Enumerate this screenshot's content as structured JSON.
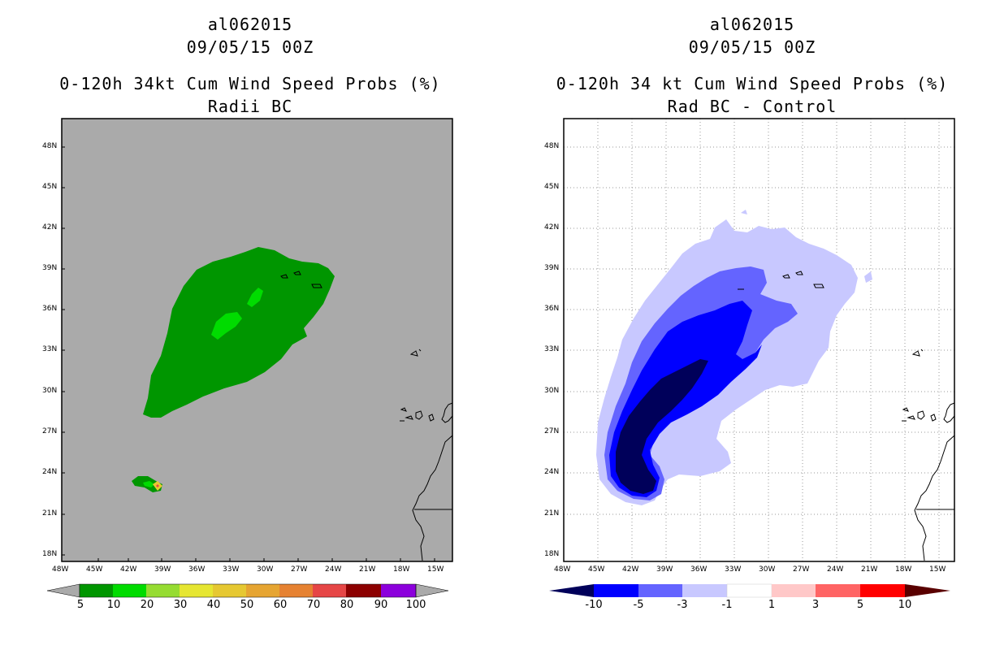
{
  "left_panel": {
    "storm_id": "al062015",
    "datetime": "09/05/15 00Z",
    "product": "0-120h 34kt Cum Wind Speed Probs (%)",
    "subtitle": "Radii BC",
    "colorbar_labels": [
      "5",
      "10",
      "20",
      "30",
      "40",
      "50",
      "60",
      "70",
      "80",
      "90",
      "100"
    ],
    "colorbar_colors": [
      "#009600",
      "#00dc00",
      "#96dc32",
      "#e6e632",
      "#e6c832",
      "#e6a532",
      "#e68232",
      "#e64646",
      "#8c0000",
      "#8c00dc"
    ],
    "background_color": "#aaaaaa"
  },
  "right_panel": {
    "storm_id": "al062015",
    "datetime": "09/05/15 00Z",
    "product": "0-120h 34 kt Cum Wind Speed Probs (%)",
    "subtitle": "Rad BC - Control",
    "colorbar_labels": [
      "-10",
      "-5",
      "-3",
      "-1",
      "1",
      "3",
      "5",
      "10"
    ],
    "colorbar_colors": [
      "#00005a",
      "#0000ff",
      "#6464ff",
      "#c8c8ff",
      "#ffffff",
      "#ffc8c8",
      "#ff6464",
      "#ff0000",
      "#5a0000"
    ],
    "background_color": "#ffffff"
  },
  "lat_labels": [
    "48N",
    "45N",
    "42N",
    "39N",
    "36N",
    "33N",
    "30N",
    "27N",
    "24N",
    "21N",
    "18N"
  ],
  "lon_labels": [
    "48W",
    "45W",
    "42W",
    "39W",
    "36W",
    "33W",
    "30W",
    "27W",
    "24W",
    "21W",
    "18W",
    "15W"
  ]
}
